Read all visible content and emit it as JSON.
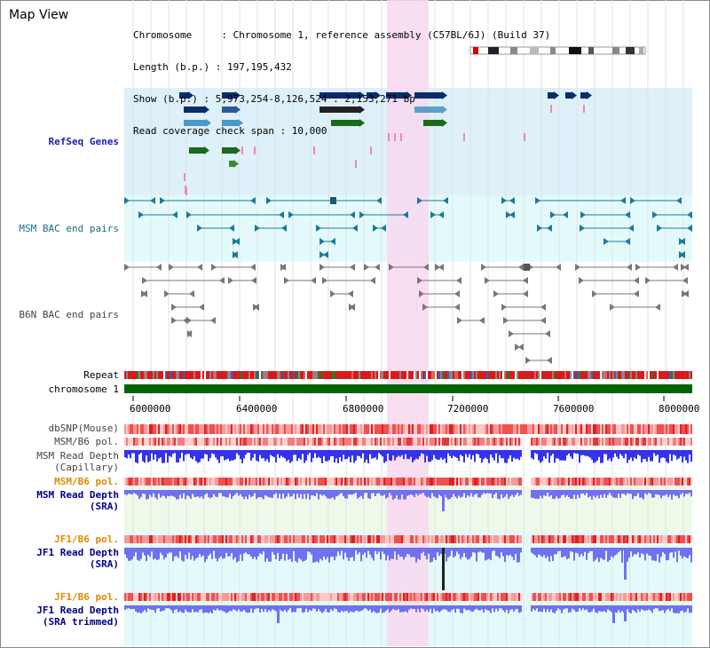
{
  "view": {
    "title": "Map View",
    "info": [
      "Chromosome     : Chromosome 1, reference assembly (C57BL/6J) (Build 37)",
      "Length (b.p.) : 197,195,432",
      "Show (b.p.) : 5,973,254-8,126,524 : 2,153,271 bp",
      "Read coverage check span : 10,000"
    ]
  },
  "tracks": {
    "refseq": "RefSeq Genes",
    "msm_bac": "MSM BAC end pairs",
    "b6n_bac": "B6N BAC end pairs",
    "repeat": "Repeat",
    "chromosome": "chromosome 1",
    "dbsnp": "dbSNP(Mouse)",
    "msm_pol": "MSM/B6 pol.",
    "msm_depth_cap_1": "MSM Read Depth",
    "msm_depth_cap_2": "(Capillary)",
    "msm_pol2": "MSM/B6 pol.",
    "msm_depth_sra_1": "MSM Read Depth",
    "msm_depth_sra_2": "(SRA)",
    "jf1_pol": "JF1/B6 pol.",
    "jf1_depth_sra_1": "JF1 Read Depth",
    "jf1_depth_sra_2": "(SRA)",
    "jf1_pol2": "JF1/B6 pol.",
    "jf1_depth_trim_1": "JF1 Read Depth",
    "jf1_depth_trim_2": "(SRA trimmed)"
  },
  "axis": {
    "ticks": [
      "6000000",
      "6400000",
      "6800000",
      "7200000",
      "7600000",
      "8000000"
    ]
  },
  "colors": {
    "highlight": "#f8d8f0",
    "refseq_bg": "#def0fa",
    "msm_bac_bg": "#e4fafa",
    "chrom_green": "#006400",
    "depth_blue": "#3333ee",
    "depth_light": "#7070f0"
  }
}
